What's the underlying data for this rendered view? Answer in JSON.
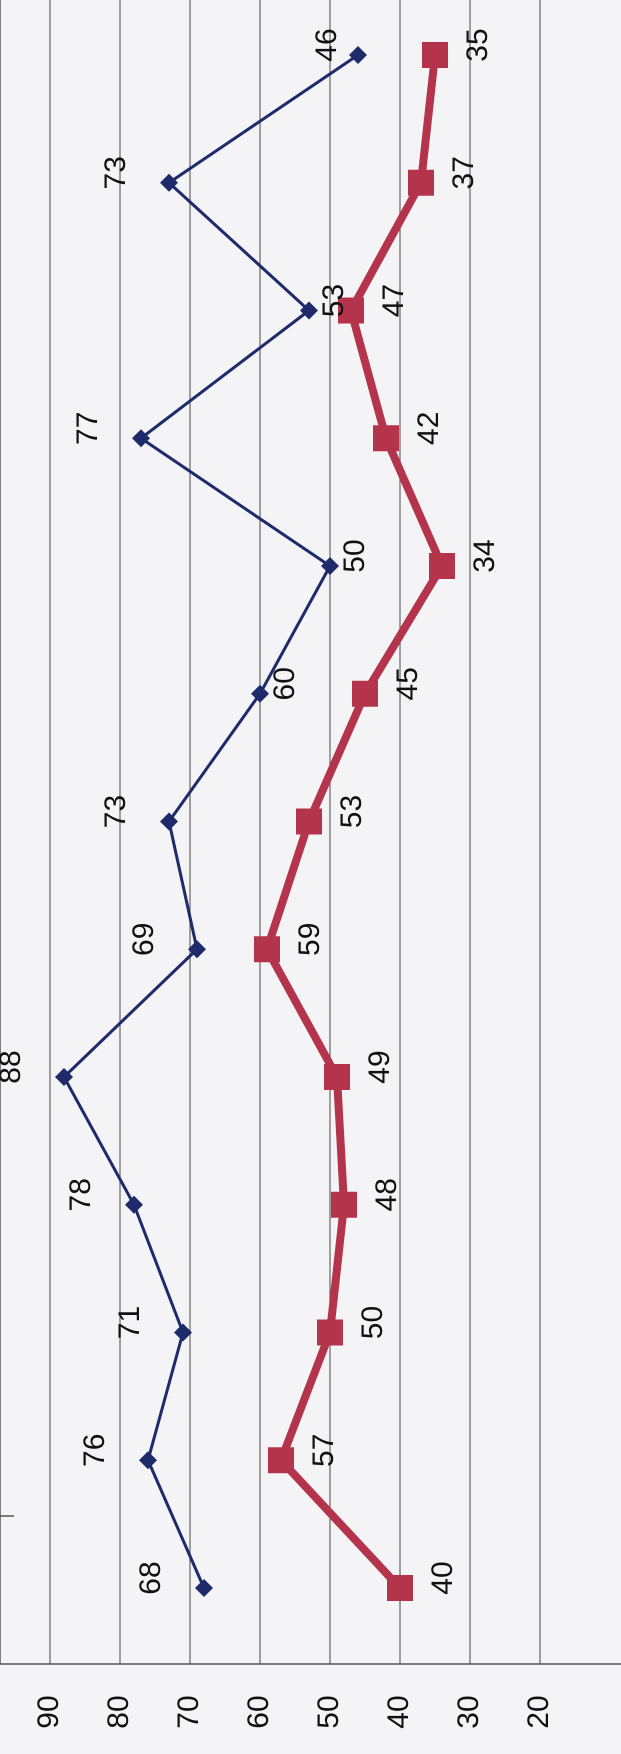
{
  "chart_data": {
    "type": "line",
    "orientation": "rotated-90-clockwise",
    "x": [
      1,
      2,
      3,
      4,
      5,
      6,
      7,
      8,
      9,
      10,
      11,
      12,
      13
    ],
    "ylim": [
      20,
      90
    ],
    "yticks": [
      "90",
      "80",
      "70",
      "60",
      "50",
      "40",
      "30",
      "20"
    ],
    "grid": true,
    "legend": "none",
    "series": [
      {
        "color": "#1f2a6b",
        "marker": "diamond",
        "values": [
          68,
          76,
          71,
          78,
          88,
          69,
          73,
          60,
          50,
          77,
          53,
          73,
          46
        ],
        "labels": [
          "68",
          "76",
          "71",
          "78",
          "88",
          "69",
          "73",
          "60",
          "50",
          "77",
          "53",
          "73",
          "46"
        ]
      },
      {
        "color": "#b4344b",
        "marker": "square",
        "values": [
          40,
          57,
          50,
          48,
          49,
          59,
          53,
          45,
          34,
          42,
          47,
          37,
          35
        ],
        "labels": [
          "40",
          "57",
          "50",
          "48",
          "49",
          "59",
          "53",
          "45",
          "34",
          "42",
          "47",
          "37",
          "35"
        ]
      }
    ]
  }
}
